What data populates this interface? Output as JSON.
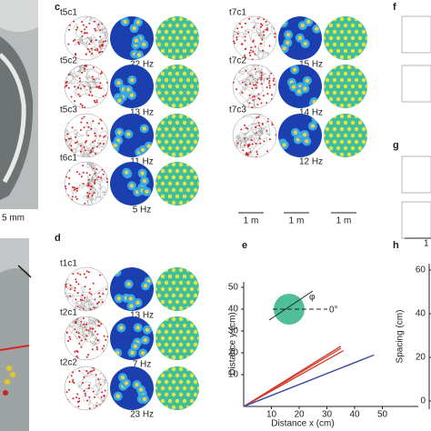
{
  "panels": {
    "left": {
      "scale": "5 mm"
    },
    "c": {
      "letter": "c",
      "left_cells": [
        {
          "label": "t5c1",
          "rate": "22 Hz"
        },
        {
          "label": "t5c2",
          "rate": "13 Hz"
        },
        {
          "label": "t5c3",
          "rate": "11 Hz"
        },
        {
          "label": "t6c1",
          "rate": "5 Hz"
        }
      ],
      "right_cells": [
        {
          "label": "t7c1",
          "rate": "15 Hz"
        },
        {
          "label": "t7c2",
          "rate": "14 Hz"
        },
        {
          "label": "t7c3",
          "rate": "12 Hz"
        }
      ],
      "scale_bars": [
        "1 m",
        "1 m",
        "1 m"
      ]
    },
    "d": {
      "letter": "d",
      "cells": [
        {
          "label": "t1c1",
          "rate": "13 Hz"
        },
        {
          "label": "t2c1",
          "rate": "7 Hz"
        },
        {
          "label": "t2c2",
          "rate": "23 Hz"
        }
      ]
    },
    "e": {
      "letter": "e",
      "xlabel": "Distance x (cm)",
      "ylabel": "Distance y (cm)",
      "xticks": [
        10,
        20,
        30,
        40,
        50
      ],
      "yticks": [
        10,
        20,
        30,
        40,
        50
      ],
      "angle_symbol": "φ",
      "reference": "0°",
      "red_lines": [
        [
          35,
          22
        ],
        [
          35,
          23
        ],
        [
          36,
          21
        ]
      ],
      "blue_lines": [
        [
          45,
          18
        ],
        [
          47,
          19
        ]
      ]
    },
    "f": {
      "letter": "f"
    },
    "g": {
      "letter": "g",
      "scale": "1"
    },
    "h": {
      "letter": "h",
      "ylabel": "Spacing (cm)",
      "yticks": [
        0,
        20,
        40,
        60
      ]
    }
  }
}
